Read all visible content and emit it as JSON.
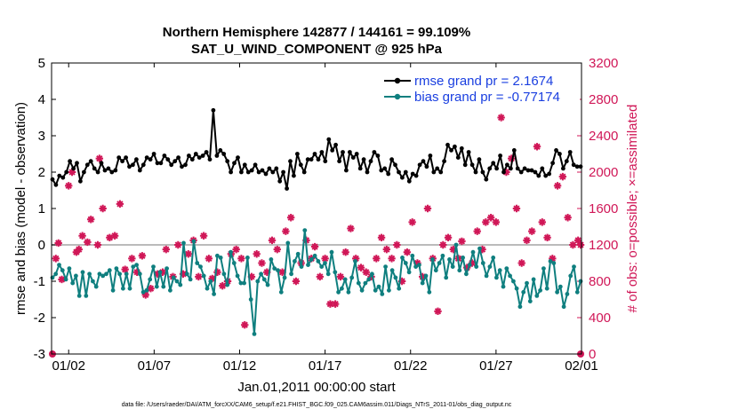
{
  "chart_data": {
    "type": "line",
    "title_line1": "Northern Hemisphere 142877 / 144161 = 99.109%",
    "title_line2": "SAT_U_WIND_COMPONENT @ 925 hPa",
    "xlabel": "Jan.01,2011 00:00:00 start",
    "ylabel_left": "rmse and bias (model - observation)",
    "ylabel_right": "# of obs: o=possible; ×=assimilated",
    "footnote": "data file: /Users/raeder/DAI/ATM_forcXX/CAM6_setup/f.e21.FHIST_BGC.f09_025.CAM6assim.011/Diags_NTrS_2011-01/obs_diag_output.nc",
    "xlim": [
      0.5,
      31.5
    ],
    "ylim_left": [
      -3,
      5
    ],
    "ylim_right": [
      0,
      3200
    ],
    "x_tick_positions": [
      1.5,
      6.5,
      11.5,
      16.5,
      21.5,
      26.5,
      31.5
    ],
    "x_tick_labels": [
      "01/02",
      "01/07",
      "01/12",
      "01/17",
      "01/22",
      "01/27",
      "02/01"
    ],
    "y_left_ticks": [
      "-3",
      "-2",
      "-1",
      "0",
      "1",
      "2",
      "3",
      "4",
      "5"
    ],
    "y_right_ticks": [
      "0",
      "400",
      "800",
      "1200",
      "1600",
      "2000",
      "2400",
      "2800",
      "3200"
    ],
    "colors": {
      "rmse": "#000000",
      "bias": "#0f7f7f",
      "obs": "#d01757",
      "legend_text": "#1a3fe0",
      "zero_line": "#bbbbbb"
    },
    "series": [
      {
        "name": "rmse grand pr = 2.1674",
        "axis": "left",
        "values": [
          1.8,
          1.65,
          1.9,
          1.85,
          2.0,
          2.3,
          2.1,
          2.25,
          1.75,
          2.0,
          2.2,
          2.3,
          2.1,
          2.0,
          2.25,
          2.05,
          2.1,
          2.0,
          2.05,
          2.4,
          2.3,
          2.4,
          2.15,
          2.2,
          2.35,
          2.05,
          2.2,
          2.4,
          2.35,
          2.5,
          2.25,
          2.25,
          2.45,
          2.35,
          2.2,
          2.3,
          2.4,
          2.15,
          2.2,
          2.45,
          2.35,
          2.5,
          2.4,
          2.45,
          2.55,
          2.35,
          3.7,
          2.45,
          2.6,
          2.5,
          2.3,
          2.0,
          2.25,
          2.4,
          2.0,
          2.2,
          2.0,
          2.05,
          2.2,
          2.0,
          2.05,
          1.95,
          2.1,
          2.0,
          2.1,
          1.75,
          2.0,
          1.55,
          2.3,
          1.9,
          2.5,
          2.2,
          2.0,
          2.35,
          2.35,
          2.5,
          2.35,
          2.55,
          2.3,
          2.9,
          2.6,
          2.75,
          2.3,
          2.55,
          2.05,
          2.55,
          2.4,
          2.5,
          2.1,
          2.35,
          2.0,
          2.3,
          2.55,
          2.45,
          2.05,
          2.1,
          1.95,
          2.35,
          2.2,
          2.0,
          1.85,
          2.0,
          1.75,
          1.95,
          1.9,
          2.2,
          2.3,
          2.15,
          2.45,
          2.0,
          2.1,
          2.0,
          2.3,
          2.75,
          2.6,
          2.7,
          2.4,
          2.65,
          2.2,
          2.55,
          2.2,
          2.0,
          2.35,
          2.0,
          1.8,
          2.1,
          2.25,
          2.1,
          2.45,
          2.0,
          2.2,
          2.1,
          2.6,
          2.1,
          2.0,
          2.1,
          2.05,
          2.05,
          2.0,
          1.9,
          2.1,
          1.9,
          1.95,
          2.25,
          2.6,
          2.5,
          2.1,
          2.3,
          2.55,
          2.2,
          2.15,
          2.15
        ]
      },
      {
        "name": "bias grand pr = -0.77174",
        "axis": "left",
        "values": [
          -0.9,
          -0.8,
          -0.55,
          -0.7,
          -0.95,
          -0.65,
          -1.05,
          -0.85,
          -1.4,
          -0.75,
          -1.4,
          -0.8,
          -1.0,
          -1.15,
          -0.8,
          -0.85,
          -0.8,
          -0.7,
          -1.25,
          -0.65,
          -0.8,
          -1.2,
          -0.8,
          -1.2,
          -0.6,
          -0.55,
          -0.8,
          -1.3,
          -1.25,
          -0.95,
          -0.6,
          -1.15,
          -0.75,
          -1.15,
          -0.65,
          -1.25,
          -0.9,
          -1.0,
          -1.1,
          0.05,
          -0.8,
          -0.95,
          0.1,
          -0.5,
          -0.6,
          -0.85,
          -1.2,
          -1.0,
          -1.35,
          -0.3,
          -0.35,
          -0.8,
          -1.1,
          -0.2,
          -0.5,
          -0.85,
          -1.05,
          -1.05,
          -0.35,
          -1.5,
          -2.45,
          -1.0,
          -0.8,
          -0.95,
          -1.1,
          -0.4,
          -0.65,
          -0.7,
          -1.3,
          -0.9,
          0.05,
          -0.8,
          -0.45,
          -0.25,
          -0.6,
          0.4,
          -0.55,
          -0.4,
          -0.3,
          -0.45,
          -0.6,
          -0.5,
          -0.8,
          -0.2,
          -0.75,
          -1.3,
          -1.2,
          -0.95,
          -1.3,
          -0.9,
          -0.45,
          -1.05,
          -1.25,
          -1.05,
          -0.95,
          -0.8,
          -1.25,
          -1.15,
          -1.35,
          -0.6,
          -1.25,
          -0.7,
          -0.9,
          -1.2,
          -0.35,
          -0.5,
          -0.75,
          -0.3,
          -0.6,
          -0.55,
          -1.05,
          -0.85,
          -1.3,
          -0.4,
          -0.7,
          -0.5,
          -0.3,
          -0.9,
          -0.4,
          -0.6,
          0.0,
          -0.7,
          -0.35,
          -0.8,
          -0.55,
          -0.2,
          -0.6,
          -0.1,
          -0.5,
          -0.85,
          -0.6,
          -0.35,
          -0.9,
          -0.7,
          -1.15,
          -0.65,
          -0.85,
          -1.0,
          -1.2,
          -1.7,
          -1.3,
          -1.05,
          -1.55,
          -0.95,
          -1.4,
          -1.25,
          -0.65,
          -1.2,
          -0.45,
          -0.5,
          -1.3,
          -1.15,
          -1.7,
          -1.35,
          -0.85,
          -0.6,
          -1.3,
          -1.0
        ]
      }
    ],
    "obs_possible": [
      {
        "x": 0.55,
        "y": 0
      },
      {
        "x": 31.45,
        "y": 0
      }
    ],
    "obs_assimilated": [
      {
        "x": 0.75,
        "y": 1050
      },
      {
        "x": 0.9,
        "y": 1220
      },
      {
        "x": 1.1,
        "y": 820
      },
      {
        "x": 1.5,
        "y": 1850
      },
      {
        "x": 1.7,
        "y": 2000
      },
      {
        "x": 1.95,
        "y": 1120
      },
      {
        "x": 2.1,
        "y": 1150
      },
      {
        "x": 2.3,
        "y": 1300
      },
      {
        "x": 2.6,
        "y": 1230
      },
      {
        "x": 2.8,
        "y": 1480
      },
      {
        "x": 3.2,
        "y": 1200
      },
      {
        "x": 3.3,
        "y": 2150
      },
      {
        "x": 3.5,
        "y": 1600
      },
      {
        "x": 3.9,
        "y": 1280
      },
      {
        "x": 4.2,
        "y": 1300
      },
      {
        "x": 4.5,
        "y": 1650
      },
      {
        "x": 4.8,
        "y": 930
      },
      {
        "x": 5.2,
        "y": 1050
      },
      {
        "x": 5.5,
        "y": 900
      },
      {
        "x": 5.8,
        "y": 1080
      },
      {
        "x": 6.0,
        "y": 650
      },
      {
        "x": 6.3,
        "y": 720
      },
      {
        "x": 6.7,
        "y": 880
      },
      {
        "x": 7.0,
        "y": 900
      },
      {
        "x": 7.2,
        "y": 1150
      },
      {
        "x": 7.6,
        "y": 850
      },
      {
        "x": 7.9,
        "y": 1200
      },
      {
        "x": 8.2,
        "y": 880
      },
      {
        "x": 8.5,
        "y": 1100
      },
      {
        "x": 8.8,
        "y": 1250
      },
      {
        "x": 9.1,
        "y": 850
      },
      {
        "x": 9.4,
        "y": 1300
      },
      {
        "x": 9.7,
        "y": 1050
      },
      {
        "x": 9.9,
        "y": 830
      },
      {
        "x": 10.2,
        "y": 900
      },
      {
        "x": 10.5,
        "y": 750
      },
      {
        "x": 10.8,
        "y": 800
      },
      {
        "x": 11.0,
        "y": 1100
      },
      {
        "x": 11.3,
        "y": 1150
      },
      {
        "x": 11.6,
        "y": 1050
      },
      {
        "x": 11.8,
        "y": 320
      },
      {
        "x": 12.2,
        "y": 850
      },
      {
        "x": 12.5,
        "y": 1100
      },
      {
        "x": 12.8,
        "y": 1000
      },
      {
        "x": 13.1,
        "y": 900
      },
      {
        "x": 13.4,
        "y": 1250
      },
      {
        "x": 13.7,
        "y": 1150
      },
      {
        "x": 14.0,
        "y": 900
      },
      {
        "x": 14.2,
        "y": 1350
      },
      {
        "x": 14.5,
        "y": 1500
      },
      {
        "x": 14.8,
        "y": 800
      },
      {
        "x": 15.1,
        "y": 1000
      },
      {
        "x": 15.4,
        "y": 1250
      },
      {
        "x": 15.7,
        "y": 1050
      },
      {
        "x": 15.9,
        "y": 1180
      },
      {
        "x": 16.2,
        "y": 850
      },
      {
        "x": 16.5,
        "y": 1050
      },
      {
        "x": 16.8,
        "y": 550
      },
      {
        "x": 17.1,
        "y": 550
      },
      {
        "x": 17.4,
        "y": 850
      },
      {
        "x": 17.7,
        "y": 1120
      },
      {
        "x": 18.0,
        "y": 1380
      },
      {
        "x": 18.3,
        "y": 1050
      },
      {
        "x": 18.6,
        "y": 950
      },
      {
        "x": 18.9,
        "y": 900
      },
      {
        "x": 19.2,
        "y": 850
      },
      {
        "x": 19.5,
        "y": 1050
      },
      {
        "x": 19.8,
        "y": 1280
      },
      {
        "x": 20.1,
        "y": 1150
      },
      {
        "x": 20.4,
        "y": 1050
      },
      {
        "x": 20.7,
        "y": 1200
      },
      {
        "x": 21.0,
        "y": 800
      },
      {
        "x": 21.3,
        "y": 1120
      },
      {
        "x": 21.6,
        "y": 1450
      },
      {
        "x": 21.9,
        "y": 1000
      },
      {
        "x": 22.2,
        "y": 850
      },
      {
        "x": 22.5,
        "y": 1600
      },
      {
        "x": 22.8,
        "y": 1050
      },
      {
        "x": 23.1,
        "y": 470
      },
      {
        "x": 23.4,
        "y": 1200
      },
      {
        "x": 23.7,
        "y": 1280
      },
      {
        "x": 24.0,
        "y": 1150
      },
      {
        "x": 24.3,
        "y": 1050
      },
      {
        "x": 24.5,
        "y": 1240
      },
      {
        "x": 24.8,
        "y": 950
      },
      {
        "x": 25.1,
        "y": 1000
      },
      {
        "x": 25.4,
        "y": 1350
      },
      {
        "x": 25.7,
        "y": 1150
      },
      {
        "x": 25.9,
        "y": 1450
      },
      {
        "x": 26.2,
        "y": 1500
      },
      {
        "x": 26.5,
        "y": 1450
      },
      {
        "x": 26.8,
        "y": 2600
      },
      {
        "x": 27.1,
        "y": 2000
      },
      {
        "x": 27.4,
        "y": 2150
      },
      {
        "x": 27.7,
        "y": 1600
      },
      {
        "x": 28.0,
        "y": 1000
      },
      {
        "x": 28.3,
        "y": 1250
      },
      {
        "x": 28.6,
        "y": 1350
      },
      {
        "x": 28.9,
        "y": 2280
      },
      {
        "x": 29.2,
        "y": 1450
      },
      {
        "x": 29.5,
        "y": 1280
      },
      {
        "x": 29.8,
        "y": 1050
      },
      {
        "x": 30.1,
        "y": 1850
      },
      {
        "x": 30.4,
        "y": 1950
      },
      {
        "x": 30.7,
        "y": 1500
      },
      {
        "x": 31.0,
        "y": 1200
      },
      {
        "x": 31.3,
        "y": 1250
      },
      {
        "x": 31.45,
        "y": 1200
      }
    ]
  }
}
